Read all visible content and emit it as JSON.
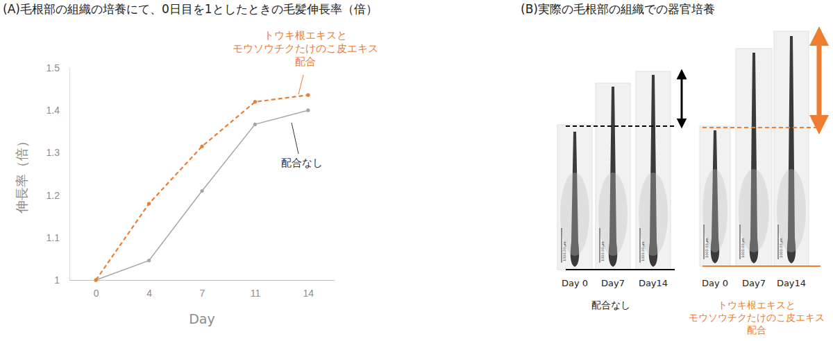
{
  "chart_data": {
    "type": "line",
    "title": "(A)毛根部の組織の培養にて、0日目を1としたときの毛髪伸長率（倍）",
    "x_label": "Day",
    "y_label": "伸長率（倍）",
    "categories": [
      "0",
      "4",
      "7",
      "11",
      "14"
    ],
    "series": [
      {
        "name": "配合なし",
        "color": "#a6a6a6",
        "marker": "circle",
        "line_style": "solid",
        "values": [
          1,
          1.046,
          1.21,
          1.367,
          1.4
        ]
      },
      {
        "name": "トウキ根エキスと\nモウソウチクたけのこ皮エキス\n配合",
        "color": "#ed7d31",
        "marker": "circle",
        "line_style": "dashed",
        "values": [
          1,
          1.18,
          1.315,
          1.42,
          1.436
        ]
      }
    ],
    "ylim": [
      1,
      1.5
    ],
    "yticks": [
      1,
      1.1,
      1.2,
      1.3,
      1.4,
      1.5
    ],
    "grid": false
  },
  "panel_b": {
    "title": "(B)実際の毛根部の組織での器官培養",
    "scale_bar": "1000.00µm",
    "groups": [
      {
        "label": "配合なし",
        "days": [
          "Day 0",
          "Day7",
          "Day14"
        ]
      },
      {
        "label": "トウキ根エキスと\nモウソウチクたけのこ皮エキス\n配合",
        "days": [
          "Day 0",
          "Day7",
          "Day14"
        ]
      }
    ]
  }
}
